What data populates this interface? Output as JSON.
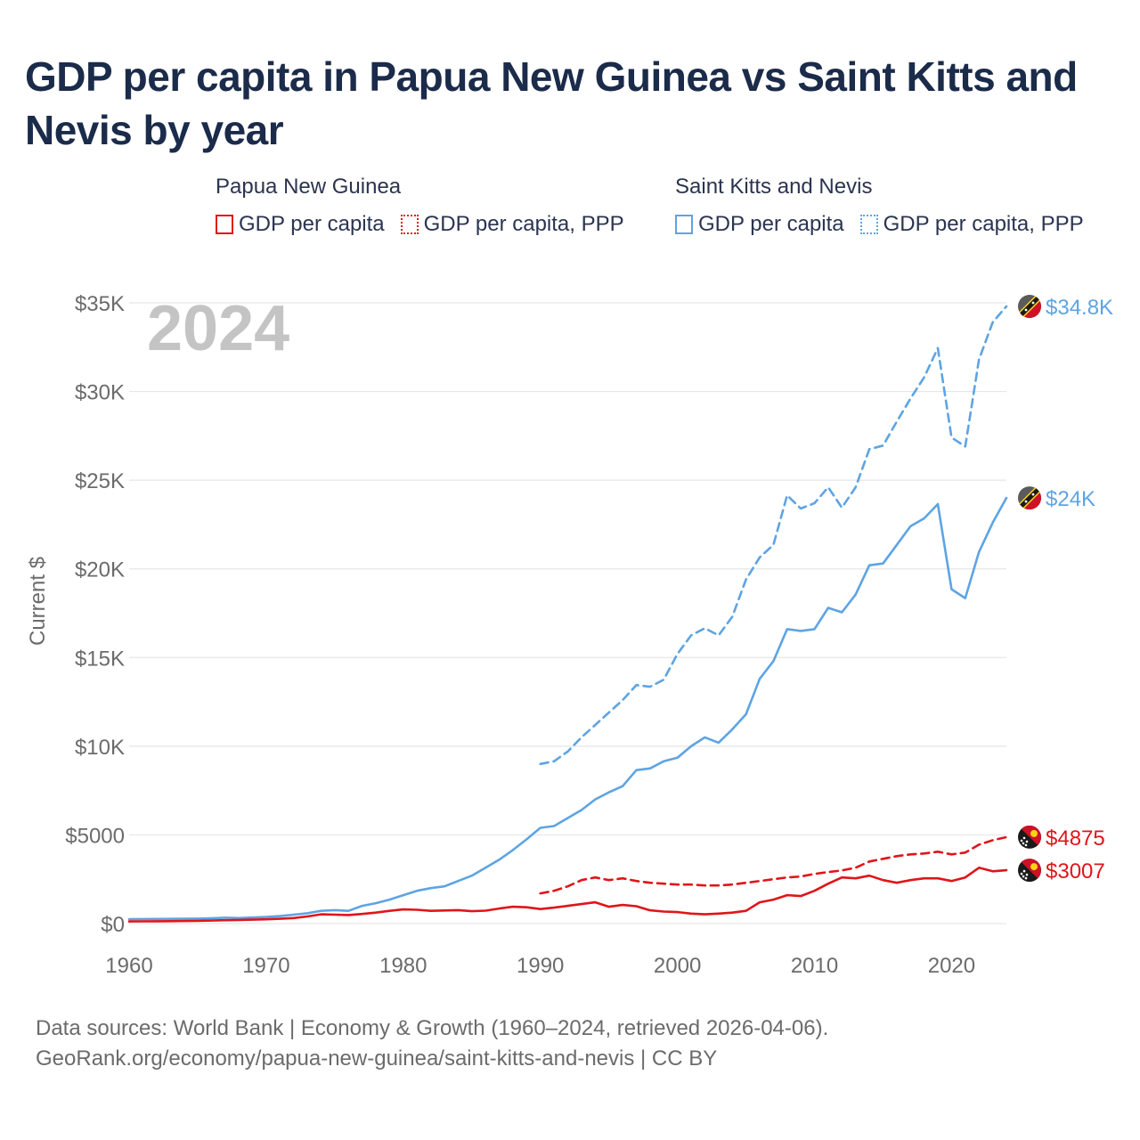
{
  "chart_data": {
    "type": "line",
    "title": "GDP per capita in Papua New Guinea vs Saint Kitts and Nevis by year",
    "ylabel": "Current $",
    "xlabel": "",
    "year_label": "2024",
    "xlim": [
      1960,
      2024
    ],
    "ylim": [
      0,
      35000
    ],
    "x_ticks": [
      {
        "value": 1960,
        "label": "1960"
      },
      {
        "value": 1970,
        "label": "1970"
      },
      {
        "value": 1980,
        "label": "1980"
      },
      {
        "value": 1990,
        "label": "1990"
      },
      {
        "value": 2000,
        "label": "2000"
      },
      {
        "value": 2010,
        "label": "2010"
      },
      {
        "value": 2020,
        "label": "2020"
      }
    ],
    "y_ticks": [
      {
        "value": 0,
        "label": "$0"
      },
      {
        "value": 5000,
        "label": "$5000"
      },
      {
        "value": 10000,
        "label": "$10K"
      },
      {
        "value": 15000,
        "label": "$15K"
      },
      {
        "value": 20000,
        "label": "$20K"
      },
      {
        "value": 25000,
        "label": "$25K"
      },
      {
        "value": 30000,
        "label": "$30K"
      },
      {
        "value": 35000,
        "label": "$35K"
      }
    ],
    "legend": [
      {
        "group": "Papua New Guinea",
        "items": [
          "GDP per capita",
          "GDP per capita, PPP"
        ]
      },
      {
        "group": "Saint Kitts and Nevis",
        "items": [
          "GDP per capita",
          "GDP per capita, PPP"
        ]
      }
    ],
    "series": [
      {
        "name": "Saint Kitts and Nevis GDP per capita, PPP",
        "country": "Saint Kitts and Nevis",
        "color": "#5ea4e3",
        "style": "dashed",
        "end_label": "$34.8K",
        "x": [
          1990,
          1991,
          1992,
          1993,
          1994,
          1995,
          1996,
          1997,
          1998,
          1999,
          2000,
          2001,
          2002,
          2003,
          2004,
          2005,
          2006,
          2007,
          2008,
          2009,
          2010,
          2011,
          2012,
          2013,
          2014,
          2015,
          2016,
          2017,
          2018,
          2019,
          2020,
          2021,
          2022,
          2023,
          2024
        ],
        "values": [
          9000,
          9150,
          9700,
          10500,
          11200,
          11900,
          12600,
          13450,
          13350,
          13750,
          15200,
          16250,
          16650,
          16250,
          17300,
          19400,
          20650,
          21350,
          24150,
          23400,
          23700,
          24600,
          23450,
          24600,
          26750,
          26950,
          28300,
          29600,
          30800,
          32450,
          27400,
          26900,
          31800,
          33900,
          34800
        ]
      },
      {
        "name": "Saint Kitts and Nevis GDP per capita",
        "country": "Saint Kitts and Nevis",
        "color": "#5ea4e3",
        "style": "solid",
        "end_label": "$24K",
        "x": [
          1960,
          1961,
          1962,
          1963,
          1964,
          1965,
          1966,
          1967,
          1968,
          1969,
          1970,
          1971,
          1972,
          1973,
          1974,
          1975,
          1976,
          1977,
          1978,
          1979,
          1980,
          1981,
          1982,
          1983,
          1984,
          1985,
          1986,
          1987,
          1988,
          1989,
          1990,
          1991,
          1992,
          1993,
          1994,
          1995,
          1996,
          1997,
          1998,
          1999,
          2000,
          2001,
          2002,
          2003,
          2004,
          2005,
          2006,
          2007,
          2008,
          2009,
          2010,
          2011,
          2012,
          2013,
          2014,
          2015,
          2016,
          2017,
          2018,
          2019,
          2020,
          2021,
          2022,
          2023,
          2024
        ],
        "values": [
          250,
          255,
          260,
          265,
          270,
          280,
          300,
          330,
          310,
          340,
          370,
          420,
          500,
          580,
          720,
          760,
          720,
          1000,
          1150,
          1350,
          1600,
          1850,
          2000,
          2100,
          2400,
          2700,
          3150,
          3600,
          4150,
          4750,
          5400,
          5500,
          5950,
          6400,
          7000,
          7400,
          7750,
          8650,
          8750,
          9150,
          9350,
          10000,
          10500,
          10200,
          10950,
          11800,
          13800,
          14800,
          16600,
          16500,
          16600,
          17800,
          17550,
          18550,
          20200,
          20300,
          21350,
          22400,
          22850,
          23650,
          18850,
          18350,
          20950,
          22600,
          24000
        ]
      },
      {
        "name": "Papua New Guinea GDP per capita, PPP",
        "country": "Papua New Guinea",
        "color": "#e0151a",
        "style": "dashed",
        "end_label": "$4875",
        "x": [
          1990,
          1991,
          1992,
          1993,
          1994,
          1995,
          1996,
          1997,
          1998,
          1999,
          2000,
          2001,
          2002,
          2003,
          2004,
          2005,
          2006,
          2007,
          2008,
          2009,
          2010,
          2011,
          2012,
          2013,
          2014,
          2015,
          2016,
          2017,
          2018,
          2019,
          2020,
          2021,
          2022,
          2023,
          2024
        ],
        "values": [
          1700,
          1850,
          2100,
          2450,
          2600,
          2450,
          2550,
          2400,
          2300,
          2250,
          2200,
          2200,
          2150,
          2150,
          2200,
          2300,
          2400,
          2500,
          2600,
          2650,
          2800,
          2900,
          3000,
          3150,
          3500,
          3650,
          3800,
          3900,
          3950,
          4050,
          3900,
          4000,
          4450,
          4700,
          4875
        ]
      },
      {
        "name": "Papua New Guinea GDP per capita",
        "country": "Papua New Guinea",
        "color": "#e0151a",
        "style": "solid",
        "end_label": "$3007",
        "x": [
          1960,
          1961,
          1962,
          1963,
          1964,
          1965,
          1966,
          1967,
          1968,
          1969,
          1970,
          1971,
          1972,
          1973,
          1974,
          1975,
          1976,
          1977,
          1978,
          1979,
          1980,
          1981,
          1982,
          1983,
          1984,
          1985,
          1986,
          1987,
          1988,
          1989,
          1990,
          1991,
          1992,
          1993,
          1994,
          1995,
          1996,
          1997,
          1998,
          1999,
          2000,
          2001,
          2002,
          2003,
          2004,
          2005,
          2006,
          2007,
          2008,
          2009,
          2010,
          2011,
          2012,
          2013,
          2014,
          2015,
          2016,
          2017,
          2018,
          2019,
          2020,
          2021,
          2022,
          2023,
          2024
        ],
        "values": [
          120,
          125,
          130,
          135,
          145,
          155,
          170,
          190,
          205,
          220,
          240,
          270,
          310,
          400,
          520,
          500,
          480,
          540,
          620,
          720,
          800,
          780,
          720,
          740,
          760,
          700,
          730,
          850,
          950,
          920,
          820,
          900,
          1000,
          1100,
          1200,
          950,
          1050,
          980,
          750,
          680,
          650,
          560,
          520,
          560,
          620,
          720,
          1200,
          1350,
          1600,
          1550,
          1850,
          2250,
          2600,
          2550,
          2700,
          2450,
          2300,
          2450,
          2550,
          2550,
          2400,
          2600,
          3150,
          2950,
          3007
        ]
      }
    ]
  },
  "legend_labels": {
    "png_group": "Papua New Guinea",
    "skn_group": "Saint Kitts and Nevis",
    "png_gdp": "GDP per capita",
    "png_ppp": "GDP per capita, PPP",
    "skn_gdp": "GDP per capita",
    "skn_ppp": "GDP per capita, PPP"
  },
  "colors": {
    "png": "#e0151a",
    "skn": "#5ea4e3",
    "grid": "#e6e6e6",
    "axis_text": "#6b6b6b",
    "year_label": "#c4c4c4"
  },
  "footer": {
    "line1": "Data sources: World Bank | Economy & Growth (1960–2024, retrieved 2026-04-06).",
    "line2": "GeoRank.org/economy/papua-new-guinea/saint-kitts-and-nevis | CC BY"
  }
}
